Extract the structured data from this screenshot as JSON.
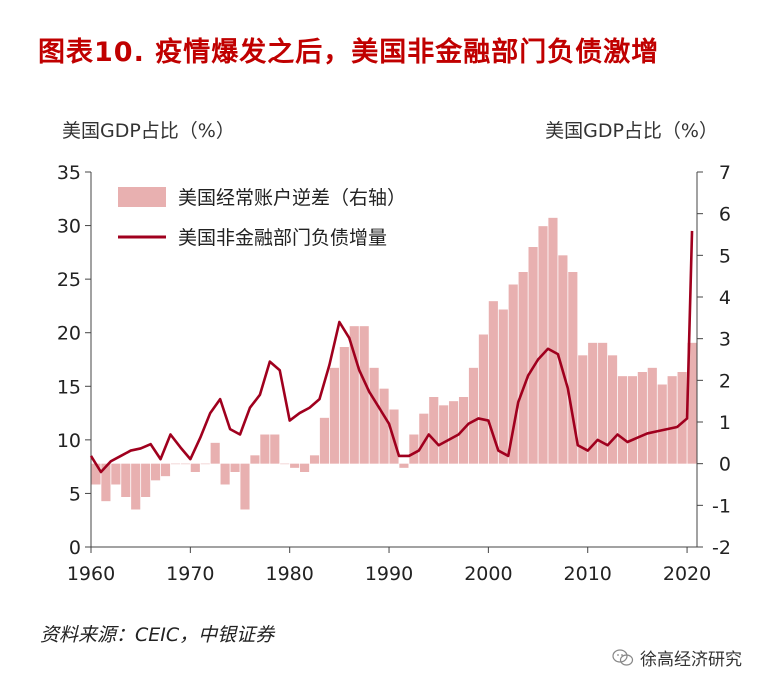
{
  "title": "图表10. 疫情爆发之后，美国非金融部门负债激增",
  "source": "资料来源：CEIC，中银证券",
  "watermark": "徐高经济研究",
  "colors": {
    "title": "#c00000",
    "bars": "#e8b0b0",
    "line": "#a0001e"
  },
  "icons": {
    "watermark": "wechat-icon"
  },
  "chart_data": {
    "type": "bar+line",
    "ylabel_left": "美国GDP占比（%）",
    "ylabel_right": "美国GDP占比（%）",
    "ylim_left": [
      0,
      35
    ],
    "ylim_right": [
      -2,
      7
    ],
    "xlim": [
      1960,
      2021
    ],
    "xticks": [
      "1960",
      "1970",
      "1980",
      "1990",
      "2000",
      "2010",
      "2020"
    ],
    "yticks_left": [
      "0",
      "5",
      "10",
      "15",
      "20",
      "25",
      "30",
      "35"
    ],
    "yticks_right": [
      "-2",
      "-1",
      "0",
      "1",
      "2",
      "3",
      "4",
      "5",
      "6",
      "7"
    ],
    "legend_position": "top-left",
    "series": [
      {
        "name": "美国经常账户逆差（右轴）",
        "type": "bar",
        "axis": "right",
        "x": [
          1960,
          1961,
          1962,
          1963,
          1964,
          1965,
          1966,
          1967,
          1968,
          1969,
          1970,
          1971,
          1972,
          1973,
          1974,
          1975,
          1976,
          1977,
          1978,
          1979,
          1980,
          1981,
          1982,
          1983,
          1984,
          1985,
          1986,
          1987,
          1988,
          1989,
          1990,
          1991,
          1992,
          1993,
          1994,
          1995,
          1996,
          1997,
          1998,
          1999,
          2000,
          2001,
          2002,
          2003,
          2004,
          2005,
          2006,
          2007,
          2008,
          2009,
          2010,
          2011,
          2012,
          2013,
          2014,
          2015,
          2016,
          2017,
          2018,
          2019,
          2020
        ],
        "values": [
          -0.5,
          -0.9,
          -0.5,
          -0.8,
          -1.1,
          -0.8,
          -0.4,
          -0.3,
          0.0,
          0.0,
          -0.2,
          0.0,
          0.5,
          -0.5,
          -0.2,
          -1.1,
          0.2,
          0.7,
          0.7,
          0.0,
          -0.1,
          -0.2,
          0.2,
          1.1,
          2.3,
          2.8,
          3.3,
          3.3,
          2.3,
          1.8,
          1.3,
          -0.1,
          0.7,
          1.2,
          1.6,
          1.4,
          1.5,
          1.6,
          2.3,
          3.1,
          3.9,
          3.7,
          4.3,
          4.6,
          5.2,
          5.7,
          5.9,
          5.0,
          4.6,
          2.6,
          2.9,
          2.9,
          2.6,
          2.1,
          2.1,
          2.2,
          2.3,
          1.9,
          2.1,
          2.2,
          2.9
        ]
      },
      {
        "name": "美国非金融部门负债增量",
        "type": "line",
        "axis": "left",
        "x": [
          1960,
          1961,
          1962,
          1963,
          1964,
          1965,
          1966,
          1967,
          1968,
          1969,
          1970,
          1971,
          1972,
          1973,
          1974,
          1975,
          1976,
          1977,
          1978,
          1979,
          1980,
          1981,
          1982,
          1983,
          1984,
          1985,
          1986,
          1987,
          1988,
          1989,
          1990,
          1991,
          1992,
          1993,
          1994,
          1995,
          1996,
          1997,
          1998,
          1999,
          2000,
          2001,
          2002,
          2003,
          2004,
          2005,
          2006,
          2007,
          2008,
          2009,
          2010,
          2011,
          2012,
          2013,
          2014,
          2015,
          2016,
          2017,
          2018,
          2019,
          2020,
          2020.5
        ],
        "values": [
          8.5,
          7.0,
          8.0,
          8.5,
          9.0,
          9.2,
          9.6,
          8.2,
          10.5,
          9.3,
          8.2,
          10.2,
          12.5,
          13.8,
          11.0,
          10.5,
          13.0,
          14.2,
          17.3,
          16.5,
          11.8,
          12.5,
          13.0,
          13.8,
          17.0,
          21.0,
          19.5,
          16.5,
          14.5,
          13.0,
          11.5,
          8.5,
          8.5,
          9.0,
          10.5,
          9.5,
          10.0,
          10.5,
          11.5,
          12.0,
          11.8,
          9.0,
          8.5,
          13.5,
          16.0,
          17.5,
          18.5,
          18.0,
          14.8,
          9.5,
          9.0,
          10.0,
          9.5,
          10.5,
          9.8,
          10.2,
          10.6,
          10.8,
          11.0,
          11.2,
          12.0,
          29.5
        ]
      }
    ]
  }
}
